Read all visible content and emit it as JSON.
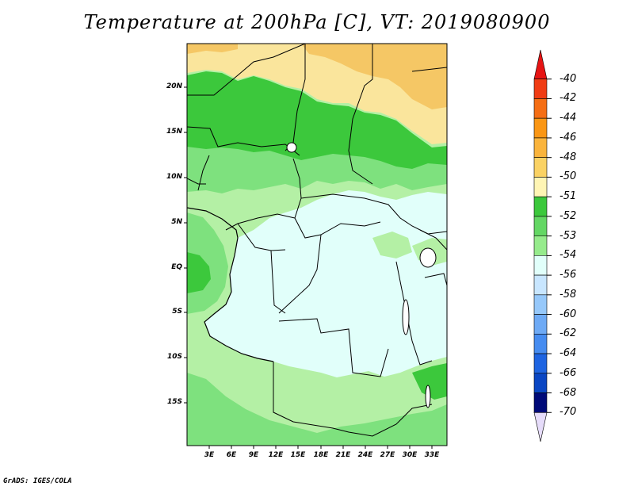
{
  "title": "Temperature at 200hPa [C], VT: 2019080900",
  "credit": "GrADS: IGES/COLA",
  "map": {
    "lat_ticks": [
      "20N",
      "15N",
      "10N",
      "5N",
      "EQ",
      "5S",
      "10S",
      "15S"
    ],
    "lon_ticks": [
      "3E",
      "6E",
      "9E",
      "12E",
      "15E",
      "18E",
      "21E",
      "24E",
      "27E",
      "30E",
      "33E"
    ],
    "fill_colors": {
      "warm_dark": "#f5c765",
      "warm_light": "#fae59c",
      "green_dark": "#3cc83c",
      "green_mid": "#7ee17e",
      "green_light": "#b4f0a5",
      "cyan_light": "#e1fffa"
    }
  },
  "colorbar": {
    "labels": [
      "-40",
      "-42",
      "-44",
      "-46",
      "-48",
      "-50",
      "-51",
      "-52",
      "-53",
      "-54",
      "-56",
      "-58",
      "-60",
      "-62",
      "-64",
      "-66",
      "-68",
      "-70"
    ],
    "colors": [
      "#e61414",
      "#f03c14",
      "#f56e14",
      "#fa9614",
      "#fab43c",
      "#fad264",
      "#fff5b4",
      "#3cc83c",
      "#64d764",
      "#96eb8c",
      "#e1fffa",
      "#c8e6ff",
      "#96c8fa",
      "#6eaaf5",
      "#468cf0",
      "#1e64e1",
      "#0a46c3",
      "#000a78",
      "#e6dcfa"
    ]
  }
}
